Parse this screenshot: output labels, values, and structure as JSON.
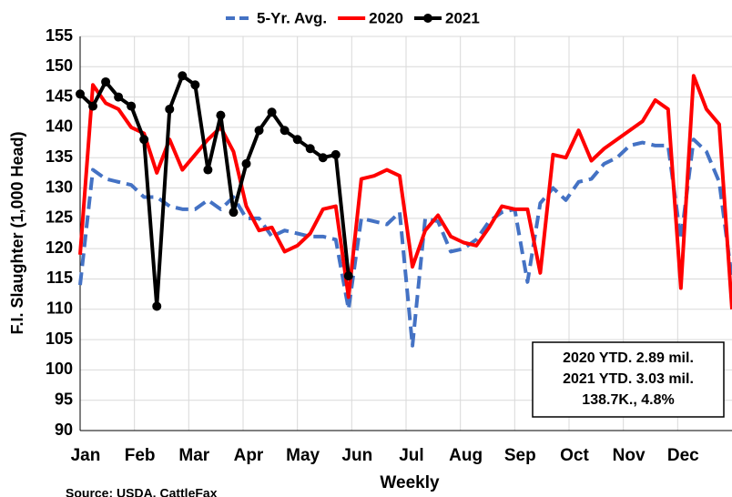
{
  "chart_data": {
    "type": "line",
    "x_label": "Weekly",
    "y_label": "F.I. Slaughter (1,000 Head)",
    "source": "Source: USDA, CattleFax",
    "x_tick_labels": [
      "Jan",
      "Feb",
      "Mar",
      "Apr",
      "May",
      "Jun",
      "Jul",
      "Aug",
      "Sep",
      "Oct",
      "Nov",
      "Dec"
    ],
    "ylim": [
      90,
      155
    ],
    "yticks": [
      90,
      95,
      100,
      105,
      110,
      115,
      120,
      125,
      130,
      135,
      140,
      145,
      150,
      155
    ],
    "grid": true,
    "legend": "top",
    "annotation": [
      "2020 YTD.  2.89 mil.",
      "2021 YTD.  3.03 mil.",
      "138.7K., 4.8%"
    ],
    "series": [
      {
        "name": "5-Yr. Avg.",
        "color": "#4472c4",
        "dash": true,
        "values": [
          114,
          133,
          131.5,
          131,
          130.5,
          128.5,
          128.5,
          127,
          126.5,
          126.5,
          128,
          126.5,
          128.5,
          125,
          125,
          122,
          123,
          122.5,
          122,
          122,
          121.5,
          110,
          125,
          124.5,
          124,
          126,
          104,
          125,
          124.5,
          119.5,
          120,
          121.5,
          124.5,
          126,
          126.5,
          114.5,
          127.5,
          130,
          128,
          131,
          131.5,
          134,
          135,
          137,
          137.5,
          137,
          137,
          121.5,
          138,
          136,
          131,
          115
        ]
      },
      {
        "name": "2020",
        "color": "#ff0000",
        "values": [
          119,
          147,
          144,
          143,
          140,
          139,
          132.5,
          138,
          133,
          135.5,
          138,
          140,
          136,
          127,
          123,
          123.5,
          119.5,
          120.5,
          122.5,
          126.5,
          127,
          112,
          131.5,
          132,
          133,
          132,
          117,
          123,
          125.5,
          122,
          121,
          120.5,
          123.5,
          127,
          126.5,
          126.5,
          116,
          135.5,
          135,
          139.5,
          134.5,
          136.5,
          138,
          139.5,
          141,
          144.5,
          143,
          113.5,
          148.5,
          143,
          140.5,
          110
        ]
      },
      {
        "name": "2021",
        "color": "#000000",
        "marker": true,
        "values": [
          145.5,
          143.5,
          147.5,
          145,
          143.5,
          138,
          110.5,
          143,
          148.5,
          147,
          133,
          142,
          126,
          134,
          139.5,
          142.5,
          139.5,
          138,
          136.5,
          135,
          135.5,
          115.5
        ]
      }
    ]
  }
}
